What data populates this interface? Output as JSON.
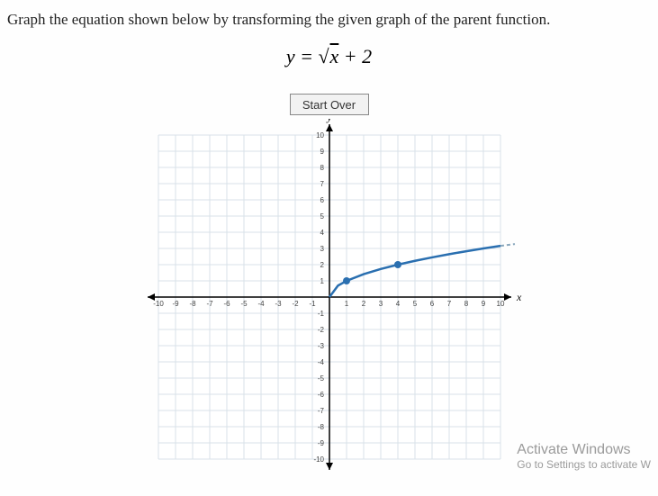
{
  "instruction": "Graph the equation shown below by transforming the given graph of the parent function.",
  "equation": {
    "lhs": "y",
    "rhs_prefix": "√",
    "rhs_radicand": "x",
    "rhs_suffix": " + 2"
  },
  "controls": {
    "start_over_label": "Start Over"
  },
  "graph": {
    "type": "line",
    "x_axis_label": "x",
    "y_axis_label": "y",
    "xlim": [
      -10,
      10
    ],
    "ylim": [
      -10,
      10
    ],
    "xtick_step": 1,
    "ytick_step": 1,
    "x_ticks": [
      -10,
      -9,
      -8,
      -7,
      -6,
      -5,
      -4,
      -3,
      -2,
      -1,
      1,
      2,
      3,
      4,
      5,
      6,
      7,
      8,
      9,
      10
    ],
    "y_ticks": [
      -10,
      -9,
      -8,
      -7,
      -6,
      -5,
      -4,
      -3,
      -2,
      -1,
      1,
      2,
      3,
      4,
      5,
      6,
      7,
      8,
      9,
      10
    ],
    "grid_color": "#d9e2e9",
    "axis_color": "#000000",
    "background_color": "#ffffff",
    "tick_font_size": 8,
    "label_font_size": 12,
    "curve": {
      "color": "#2a6fb0",
      "width": 2.5,
      "dashed_extension_color": "#8aa8bd",
      "points_x": [
        0,
        0.5,
        1,
        2,
        3,
        4,
        5,
        6,
        7,
        8,
        9,
        10
      ],
      "points_y": [
        0,
        0.707,
        1,
        1.414,
        1.732,
        2,
        2.236,
        2.449,
        2.646,
        2.828,
        3,
        3.162
      ],
      "solid_until_x": 10,
      "markers": {
        "color": "#2a6fb0",
        "radius": 4,
        "positions": [
          [
            1,
            1
          ],
          [
            4,
            2
          ]
        ]
      }
    }
  },
  "watermark": {
    "title": "Activate Windows",
    "sub": "Go to Settings to activate W"
  }
}
